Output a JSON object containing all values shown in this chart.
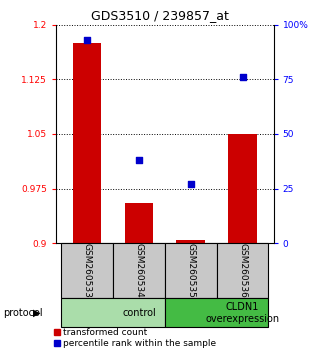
{
  "title": "GDS3510 / 239857_at",
  "samples": [
    "GSM260533",
    "GSM260534",
    "GSM260535",
    "GSM260536"
  ],
  "transformed_counts": [
    1.175,
    0.955,
    0.905,
    1.05
  ],
  "percentile_ranks": [
    93,
    38,
    27,
    76
  ],
  "left_ylim": [
    0.9,
    1.2
  ],
  "left_yticks": [
    0.9,
    0.975,
    1.05,
    1.125,
    1.2
  ],
  "right_ylim": [
    0,
    100
  ],
  "right_yticks": [
    0,
    25,
    50,
    75,
    100
  ],
  "right_yticklabels": [
    "0",
    "25",
    "50",
    "75",
    "100%"
  ],
  "bar_color": "#cc0000",
  "scatter_color": "#0000cc",
  "bar_bottom": 0.9,
  "protocol_groups": [
    {
      "label": "control",
      "start": 0,
      "end": 2,
      "color": "#aaddaa"
    },
    {
      "label": "CLDN1\noverexpression",
      "start": 2,
      "end": 4,
      "color": "#44bb44"
    }
  ],
  "protocol_label": "protocol",
  "legend_items": [
    {
      "label": "transformed count",
      "color": "#cc0000"
    },
    {
      "label": "percentile rank within the sample",
      "color": "#0000cc"
    }
  ],
  "sample_box_color": "#c8c8c8",
  "title_fontsize": 9
}
